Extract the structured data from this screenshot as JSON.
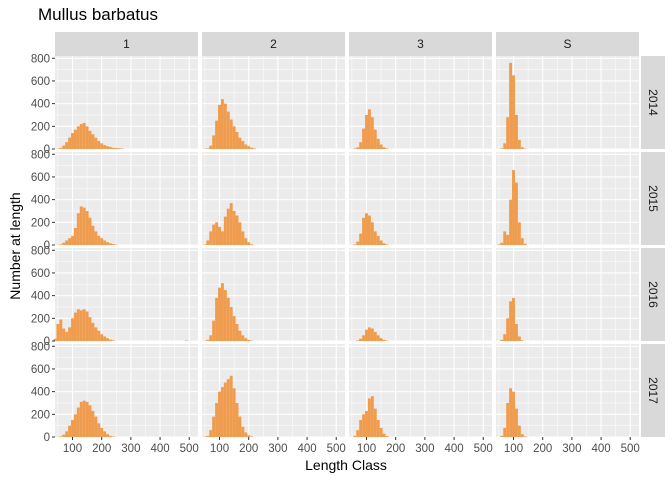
{
  "chart_data": {
    "type": "bar",
    "title": "Mullus barbatus",
    "xlabel": "Length Class",
    "ylabel": "Number at length",
    "facet_columns": [
      "1",
      "2",
      "3",
      "S"
    ],
    "facet_rows": [
      "2014",
      "2015",
      "2016",
      "2017"
    ],
    "xlim": [
      40,
      530
    ],
    "ylim": [
      0,
      820
    ],
    "x_ticks": [
      100,
      200,
      300,
      400,
      500
    ],
    "y_ticks": [
      0,
      200,
      400,
      600,
      800
    ],
    "bin_width": 10,
    "bar_color": "#f09c4e",
    "panel_background": "#ebebeb",
    "strip_background": "#d9d9d9",
    "grid": true,
    "panels": [
      {
        "row": "2014",
        "col": "1",
        "x": [
          50,
          60,
          70,
          80,
          90,
          100,
          110,
          120,
          130,
          140,
          150,
          160,
          170,
          180,
          190,
          200,
          210,
          220,
          230,
          240,
          250,
          260,
          270
        ],
        "y": [
          3,
          10,
          30,
          60,
          100,
          140,
          170,
          200,
          220,
          230,
          200,
          160,
          130,
          100,
          70,
          50,
          35,
          25,
          18,
          10,
          8,
          6,
          4
        ]
      },
      {
        "row": "2014",
        "col": "2",
        "x": [
          50,
          60,
          70,
          80,
          90,
          100,
          110,
          120,
          130,
          140,
          150,
          160,
          170,
          180,
          190,
          200,
          210,
          220
        ],
        "y": [
          2,
          5,
          30,
          120,
          250,
          390,
          440,
          400,
          330,
          260,
          200,
          150,
          100,
          70,
          40,
          25,
          12,
          5
        ]
      },
      {
        "row": "2014",
        "col": "3",
        "x": [
          60,
          70,
          80,
          90,
          100,
          110,
          120,
          130,
          140,
          150,
          160,
          170
        ],
        "y": [
          5,
          15,
          60,
          180,
          300,
          350,
          280,
          170,
          90,
          40,
          15,
          5
        ]
      },
      {
        "row": "2014",
        "col": "S",
        "x": [
          60,
          70,
          80,
          90,
          100,
          110,
          120,
          130,
          140
        ],
        "y": [
          5,
          50,
          280,
          760,
          650,
          300,
          80,
          15,
          3
        ]
      },
      {
        "row": "2015",
        "col": "1",
        "x": [
          50,
          60,
          70,
          80,
          90,
          100,
          110,
          120,
          130,
          140,
          150,
          160,
          170,
          180,
          190,
          200,
          210,
          220,
          230,
          240,
          250
        ],
        "y": [
          2,
          5,
          20,
          40,
          60,
          80,
          150,
          280,
          340,
          330,
          300,
          240,
          170,
          120,
          80,
          60,
          40,
          25,
          15,
          8,
          3
        ]
      },
      {
        "row": "2015",
        "col": "2",
        "x": [
          50,
          60,
          70,
          80,
          90,
          100,
          110,
          120,
          130,
          140,
          150,
          160,
          170,
          180,
          190,
          200,
          210
        ],
        "y": [
          5,
          40,
          120,
          180,
          200,
          160,
          120,
          250,
          320,
          370,
          300,
          260,
          200,
          120,
          60,
          25,
          8
        ]
      },
      {
        "row": "2015",
        "col": "3",
        "x": [
          60,
          70,
          80,
          90,
          100,
          110,
          120,
          130,
          140,
          150,
          160,
          170
        ],
        "y": [
          5,
          30,
          100,
          240,
          280,
          260,
          200,
          120,
          80,
          40,
          15,
          5
        ]
      },
      {
        "row": "2015",
        "col": "S",
        "x": [
          50,
          60,
          70,
          80,
          90,
          100,
          110,
          120,
          130,
          140
        ],
        "y": [
          5,
          20,
          120,
          90,
          400,
          660,
          550,
          200,
          60,
          10
        ]
      },
      {
        "row": "2016",
        "col": "1",
        "x": [
          40,
          50,
          60,
          70,
          80,
          90,
          100,
          110,
          120,
          130,
          140,
          150,
          160,
          170,
          180,
          190,
          200,
          210,
          220,
          230,
          240,
          490
        ],
        "y": [
          20,
          150,
          190,
          110,
          80,
          120,
          200,
          250,
          280,
          270,
          280,
          260,
          210,
          160,
          120,
          90,
          60,
          40,
          25,
          12,
          5,
          4
        ]
      },
      {
        "row": "2016",
        "col": "2",
        "x": [
          50,
          60,
          70,
          80,
          90,
          100,
          110,
          120,
          130,
          140,
          150,
          160,
          170,
          180,
          190,
          200,
          210
        ],
        "y": [
          2,
          10,
          50,
          180,
          380,
          470,
          510,
          450,
          380,
          300,
          220,
          150,
          90,
          50,
          25,
          10,
          3
        ]
      },
      {
        "row": "2016",
        "col": "3",
        "x": [
          70,
          80,
          90,
          100,
          110,
          120,
          130,
          140,
          150,
          160,
          170
        ],
        "y": [
          5,
          20,
          50,
          100,
          120,
          110,
          80,
          50,
          25,
          10,
          3
        ]
      },
      {
        "row": "2016",
        "col": "S",
        "x": [
          60,
          70,
          80,
          90,
          100,
          110,
          120,
          130
        ],
        "y": [
          10,
          60,
          200,
          350,
          380,
          150,
          40,
          5
        ]
      },
      {
        "row": "2017",
        "col": "1",
        "x": [
          50,
          60,
          70,
          80,
          90,
          100,
          110,
          120,
          130,
          140,
          150,
          160,
          170,
          180,
          190,
          200,
          210,
          220,
          230,
          240
        ],
        "y": [
          2,
          5,
          20,
          50,
          100,
          150,
          200,
          260,
          310,
          320,
          310,
          280,
          230,
          180,
          120,
          80,
          50,
          25,
          10,
          4
        ]
      },
      {
        "row": "2017",
        "col": "2",
        "x": [
          50,
          60,
          70,
          80,
          90,
          100,
          110,
          120,
          130,
          140,
          150,
          160,
          170,
          180,
          190,
          200,
          210
        ],
        "y": [
          3,
          10,
          60,
          180,
          300,
          400,
          440,
          480,
          510,
          540,
          430,
          300,
          180,
          90,
          40,
          15,
          5
        ]
      },
      {
        "row": "2017",
        "col": "3",
        "x": [
          60,
          70,
          80,
          90,
          100,
          110,
          120,
          130,
          140,
          150,
          160,
          170
        ],
        "y": [
          10,
          60,
          150,
          200,
          230,
          340,
          360,
          250,
          150,
          80,
          30,
          8
        ]
      },
      {
        "row": "2017",
        "col": "S",
        "x": [
          60,
          70,
          80,
          90,
          100,
          110,
          120,
          130,
          140
        ],
        "y": [
          10,
          80,
          300,
          430,
          400,
          250,
          100,
          25,
          5
        ]
      }
    ]
  }
}
